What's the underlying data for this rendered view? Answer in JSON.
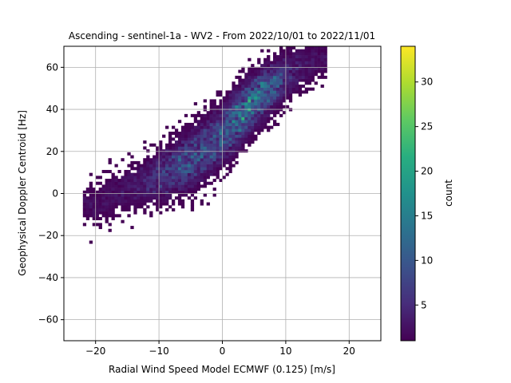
{
  "chart_data": {
    "type": "heatmap",
    "title": "Ascending - sentinel-1a - WV2 - From 2022/10/01 to 2022/11/01",
    "xlabel": "Radial Wind Speed Model ECMWF (0.125) [m/s]",
    "ylabel": "Geophysical Doppler Centroid [Hz]",
    "xlim": [
      -25,
      25
    ],
    "ylim": [
      -70,
      70
    ],
    "xticks": [
      -20,
      -10,
      0,
      10,
      20
    ],
    "yticks": [
      -60,
      -40,
      -20,
      0,
      20,
      40,
      60
    ],
    "grid": true,
    "colormap": "viridis",
    "colorbar": {
      "label": "count",
      "min": 1,
      "max": 34,
      "ticks": [
        5,
        10,
        15,
        20,
        25,
        30
      ]
    },
    "bin_width": [
      0.5,
      1.4
    ],
    "density_trend": {
      "description_points_x": [
        -20,
        -15,
        -10,
        -5,
        0,
        5,
        10,
        15
      ],
      "description_points_y": [
        -5,
        2,
        8,
        16,
        28,
        44,
        56,
        64
      ]
    }
  }
}
